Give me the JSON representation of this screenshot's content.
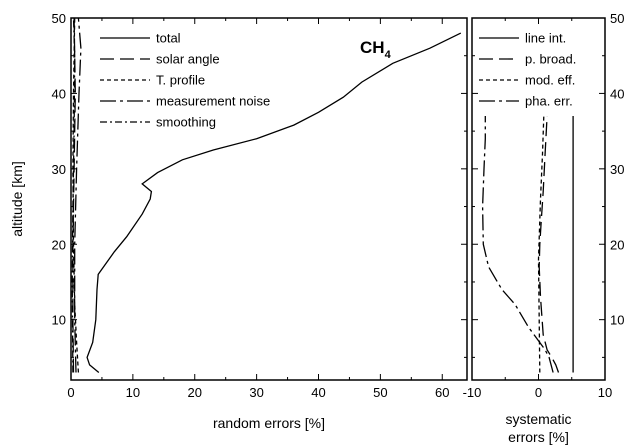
{
  "chart_data": [
    {
      "type": "line",
      "xlabel": "random errors [%]",
      "ylabel": "altitude [km]",
      "xlim": [
        0,
        64
      ],
      "ylim": [
        2,
        50
      ],
      "xticks": [
        0,
        10,
        20,
        30,
        40,
        50,
        60
      ],
      "yticks": [
        10,
        20,
        30,
        40,
        50
      ],
      "annotation_main": "CH",
      "annotation_sub": "4",
      "legend_position": "top-left",
      "series": [
        {
          "name": "total",
          "dash": "solid",
          "points": [
            [
              4.5,
              3
            ],
            [
              3,
              4
            ],
            [
              2.6,
              5
            ],
            [
              3.5,
              7
            ],
            [
              4,
              10
            ],
            [
              4.2,
              14
            ],
            [
              4.4,
              16
            ],
            [
              7,
              19
            ],
            [
              9,
              21
            ],
            [
              11.5,
              24
            ],
            [
              12.8,
              26
            ],
            [
              13,
              27
            ],
            [
              11.5,
              28
            ],
            [
              14,
              29.5
            ],
            [
              18,
              31.2
            ],
            [
              23,
              32.5
            ],
            [
              30,
              34
            ],
            [
              36,
              35.8
            ],
            [
              40,
              37.5
            ],
            [
              44,
              39.5
            ],
            [
              47,
              41.5
            ],
            [
              52,
              44
            ],
            [
              58,
              46
            ],
            [
              63,
              48
            ]
          ]
        },
        {
          "name": "solar angle",
          "dash": "long",
          "points": [
            [
              0.4,
              3
            ],
            [
              0.3,
              10
            ],
            [
              0.3,
              20
            ],
            [
              0.5,
              30
            ],
            [
              0.7,
              40
            ],
            [
              0.5,
              50
            ]
          ]
        },
        {
          "name": "T. profile",
          "dash": "short",
          "points": [
            [
              1.2,
              3
            ],
            [
              0.9,
              7
            ],
            [
              0.6,
              12
            ],
            [
              0.4,
              20
            ],
            [
              0.3,
              30
            ],
            [
              0.4,
              40
            ],
            [
              0.6,
              50
            ]
          ]
        },
        {
          "name": "measurement noise",
          "dash": "dashdot-long",
          "points": [
            [
              0.8,
              3
            ],
            [
              0.6,
              10
            ],
            [
              0.6,
              20
            ],
            [
              0.9,
              30
            ],
            [
              1.3,
              40
            ],
            [
              1.6,
              46
            ],
            [
              1.2,
              50
            ]
          ]
        },
        {
          "name": "smoothing",
          "dash": "dashdot",
          "points": [
            [
              0.3,
              3
            ],
            [
              0.2,
              15
            ],
            [
              0.3,
              25
            ],
            [
              0.5,
              35
            ],
            [
              0.6,
              45
            ],
            [
              0.4,
              50
            ]
          ]
        }
      ]
    },
    {
      "type": "line",
      "xlabel_line1": "systematic",
      "xlabel_line2": "errors [%]",
      "xlim": [
        -10,
        10
      ],
      "ylim": [
        2,
        50
      ],
      "xticks": [
        -10,
        0,
        10
      ],
      "xtick_labels": [
        "-10",
        "0",
        "10"
      ],
      "yticks": [
        10,
        20,
        30,
        40,
        50
      ],
      "legend_position": "top",
      "series": [
        {
          "name": "line int.",
          "dash": "solid",
          "points": [
            [
              5.2,
              3
            ],
            [
              5.2,
              10
            ],
            [
              5.2,
              20
            ],
            [
              5.2,
              30
            ],
            [
              5.2,
              37
            ]
          ]
        },
        {
          "name": "p. broad.",
          "dash": "long",
          "points": [
            [
              3,
              3
            ],
            [
              2.6,
              4
            ],
            [
              2,
              5
            ],
            [
              1.3,
              6
            ],
            [
              0.7,
              8
            ],
            [
              0.3,
              13
            ],
            [
              0.1,
              17
            ],
            [
              0.2,
              20
            ],
            [
              0.4,
              23
            ],
            [
              0.7,
              27
            ],
            [
              1,
              32
            ],
            [
              1.3,
              37
            ]
          ]
        },
        {
          "name": "mod. eff.",
          "dash": "short",
          "points": [
            [
              0.2,
              3
            ],
            [
              0.1,
              10
            ],
            [
              0,
              18
            ],
            [
              0.3,
              26
            ],
            [
              0.6,
              32
            ],
            [
              0.8,
              37
            ]
          ]
        },
        {
          "name": "pha. err.",
          "dash": "dashdot-long",
          "points": [
            [
              2.2,
              3
            ],
            [
              1.6,
              5
            ],
            [
              1,
              6
            ],
            [
              -1.5,
              9
            ],
            [
              -3.5,
              12
            ],
            [
              -5.5,
              14
            ],
            [
              -7.5,
              17
            ],
            [
              -8.3,
              20
            ],
            [
              -8.4,
              25
            ],
            [
              -8.2,
              30
            ],
            [
              -8,
              34
            ],
            [
              -8,
              37
            ]
          ]
        }
      ]
    }
  ]
}
